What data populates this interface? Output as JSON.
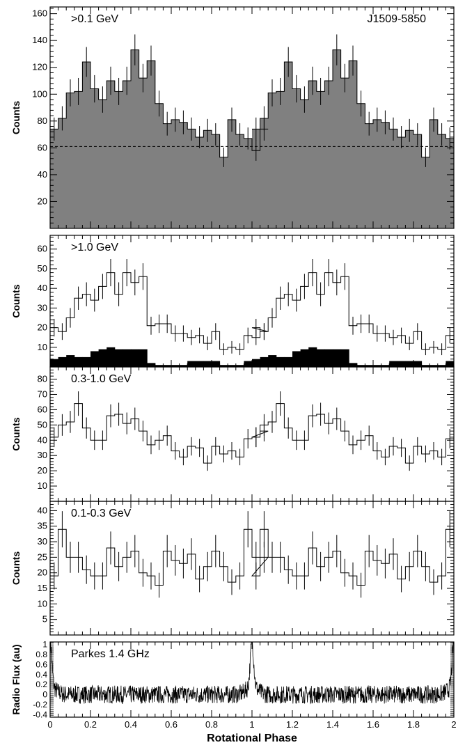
{
  "chart_data": {
    "type": "histogram",
    "phase_range": [
      0,
      2
    ],
    "xlabel": "Rotational Phase",
    "x_ticks": [
      0,
      0.2,
      0.4,
      0.6,
      0.8,
      1,
      1.2,
      1.4,
      1.6,
      1.8,
      2
    ],
    "x_tick_labels": [
      "0",
      "0.2",
      "0.4",
      "0.6",
      "0.8",
      "1",
      "1.2",
      "1.4",
      "1.6",
      "1.8",
      "2"
    ],
    "bin_width": 0.04,
    "panels": [
      {
        "label": ">0.1 GeV",
        "source_label": "J1509-5850",
        "ylabel": "Counts",
        "ylim": [
          0,
          165
        ],
        "y_ticks": [
          20,
          40,
          60,
          80,
          100,
          120,
          140,
          160
        ],
        "fill": "#808080",
        "background_level": 61,
        "series": [
          {
            "values": [
              74,
              82,
              101,
              102,
              124,
              104,
              96,
              110,
              102,
              110,
              133,
              112,
              125,
              93,
              78,
              81,
              79,
              74,
              68,
              73,
              70,
              53,
              81,
              70,
              67,
              58,
              74
            ]
          }
        ]
      },
      {
        "label": ">1.0 GeV",
        "ylabel": "Counts",
        "ylim": [
          0,
          67
        ],
        "y_ticks": [
          10,
          20,
          30,
          40,
          50,
          60
        ],
        "series": [
          {
            "values": [
              20,
              18,
              25,
              35,
              37,
              34,
              41,
              48,
              37,
              48,
              43,
              46,
              21,
              22,
              22,
              17,
              17,
              15,
              16,
              12,
              18,
              9,
              10,
              9,
              16,
              15,
              18
            ]
          },
          {
            "fill": "#000000",
            "values": [
              4,
              5,
              6,
              5,
              5,
              8,
              9,
              10,
              9,
              9,
              9,
              9,
              2,
              1,
              1,
              1,
              1,
              3,
              3,
              3,
              3,
              1,
              1,
              1,
              3,
              3,
              3
            ]
          }
        ]
      },
      {
        "label": "0.3-1.0 GeV",
        "ylabel": "Counts",
        "ylim": [
          0,
          88
        ],
        "y_ticks": [
          10,
          20,
          30,
          40,
          50,
          60,
          70,
          80
        ],
        "series": [
          {
            "values": [
              42,
              50,
              52,
              64,
              48,
              40,
              40,
              56,
              57,
              51,
              54,
              46,
              37,
              40,
              43,
              33,
              29,
              36,
              35,
              25,
              36,
              31,
              33,
              29,
              41,
              42,
              46
            ]
          }
        ]
      },
      {
        "label": "0.1-0.3 GeV",
        "ylabel": "Counts",
        "ylim": [
          0,
          43
        ],
        "y_ticks": [
          5,
          10,
          15,
          20,
          25,
          30,
          35,
          40
        ],
        "series": [
          {
            "values": [
              19,
              34,
              25,
              25,
              21,
              19,
              19,
              28,
              22,
              25,
              27,
              20,
              19,
              16,
              27,
              24,
              23,
              26,
              18,
              22,
              27,
              22,
              17,
              19,
              34,
              25,
              25
            ]
          }
        ]
      },
      {
        "label": "Parkes 1.4 GHz",
        "ylabel": "Radio Flux (au)",
        "ylim": [
          -0.45,
          1.05
        ],
        "y_ticks": [
          -0.4,
          -0.2,
          0,
          0.2,
          0.4,
          0.6,
          0.8,
          1
        ],
        "y_tick_labels": [
          "-0.4",
          "-0.2",
          "0",
          "0.2",
          "0.4",
          "0.6",
          "0.8",
          "1"
        ],
        "type": "line"
      }
    ]
  }
}
